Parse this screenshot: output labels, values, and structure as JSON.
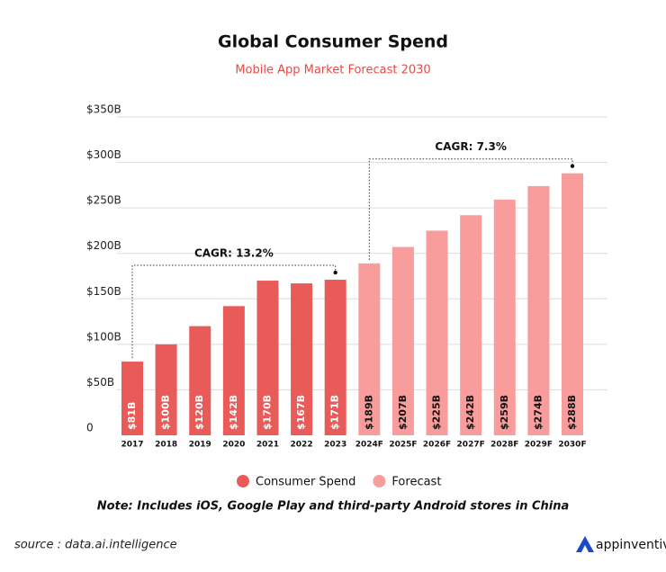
{
  "chart_data": {
    "type": "bar",
    "title": "Global Consumer Spend",
    "subtitle": "Mobile App Market Forecast 2030",
    "categories": [
      "2017",
      "2018",
      "2019",
      "2020",
      "2021",
      "2022",
      "2023",
      "2024F",
      "2025F",
      "2026F",
      "2027F",
      "2028F",
      "2029F",
      "2030F"
    ],
    "series": [
      {
        "name": "Consumer Spend",
        "color": "#e85b58",
        "values": [
          81,
          100,
          120,
          142,
          170,
          167,
          171,
          null,
          null,
          null,
          null,
          null,
          null,
          null
        ],
        "value_labels": [
          "$81B",
          "$100B",
          "$120B",
          "$142B",
          "$170B",
          "$167B",
          "$171B",
          null,
          null,
          null,
          null,
          null,
          null,
          null
        ]
      },
      {
        "name": "Forecast",
        "color": "#f89d9b",
        "values": [
          null,
          null,
          null,
          null,
          null,
          null,
          null,
          189,
          207,
          225,
          242,
          259,
          274,
          288
        ],
        "value_labels": [
          null,
          null,
          null,
          null,
          null,
          null,
          null,
          "$189B",
          "$207B",
          "$225B",
          "$242B",
          "$259B",
          "$274B",
          "$288B"
        ]
      }
    ],
    "ylim": [
      0,
      350
    ],
    "yticks": [
      0,
      {
        "value": 50,
        "label": "$50B"
      },
      {
        "value": 100,
        "label": "$100B"
      },
      {
        "value": 150,
        "label": "$150B"
      },
      {
        "value": 200,
        "label": "$200B"
      },
      {
        "value": 250,
        "label": "$250B"
      },
      {
        "value": 300,
        "label": "$300B"
      },
      {
        "value": 350,
        "label": "$350B"
      }
    ],
    "grid": true,
    "annotations": [
      "CAGR: 13.2%",
      "CAGR: 7.3%"
    ],
    "note": "Note: Includes iOS, Google Play and third-party Android stores in China",
    "source": "source : data.ai.intelligence",
    "brand": "appinventiv"
  }
}
